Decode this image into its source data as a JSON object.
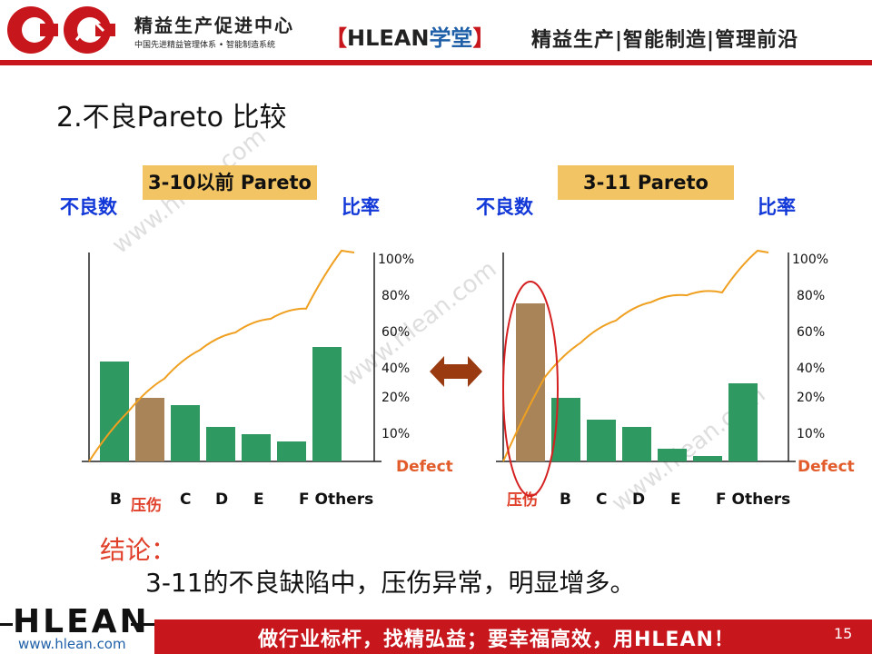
{
  "header": {
    "brand_name": "精益生产促进中心",
    "brand_sub": "中国先进精益管理体系 • 智能制造系统",
    "academy_open": "【",
    "academy_brand": "HLEAN",
    "academy_suffix": "学堂",
    "academy_close": "】",
    "tagline": "精益生产|智能制造|管理前沿"
  },
  "slide": {
    "title": "2.不良Pareto 比较"
  },
  "left_chart_labels": {
    "heading": "3-10以前 Pareto",
    "y_left": "不良数",
    "y_right": "比率",
    "defect": "Defect",
    "pct_ticks": [
      "100%",
      "80%",
      "60%",
      "40%",
      "20%",
      "10%"
    ],
    "x_labels": [
      "B",
      "压伤",
      "C",
      "D",
      "E",
      "F Others"
    ]
  },
  "right_chart_labels": {
    "heading": "3-11 Pareto",
    "y_left": "不良数",
    "y_right": "比率",
    "defect": "Defect",
    "pct_ticks": [
      "100%",
      "80%",
      "60%",
      "40%",
      "20%",
      "10%"
    ],
    "x_labels": [
      "压伤",
      "B",
      "C",
      "D",
      "E",
      "F Others"
    ]
  },
  "chart_data": [
    {
      "type": "bar",
      "title": "3-10以前 Pareto",
      "categories": [
        "B",
        "压伤",
        "C",
        "D",
        "E",
        "F",
        "Others"
      ],
      "values": [
        55,
        35,
        31,
        19,
        15,
        11,
        63
      ],
      "cumulative_line": true,
      "highlight": "压伤",
      "colors": {
        "bar": "#2e9960",
        "highlight": "#a88458",
        "line": "#f0a020"
      }
    },
    {
      "type": "bar",
      "title": "3-11 Pareto",
      "categories": [
        "压伤",
        "B",
        "C",
        "D",
        "E",
        "F",
        "Others"
      ],
      "values": [
        87,
        35,
        23,
        19,
        7,
        3,
        43
      ],
      "cumulative_line": true,
      "highlight": "压伤",
      "colors": {
        "bar": "#2e9960",
        "highlight": "#a88458",
        "line": "#f0a020"
      }
    }
  ],
  "conclusion": {
    "label": "结论：",
    "text": "3-11的不良缺陷中，压伤异常，明显增多。"
  },
  "footer": {
    "logo": "HLEAN",
    "url": "www.hlean.com",
    "slogan": "做行业标杆，找精弘益；要幸福高效，用HLEAN！",
    "page": "15"
  },
  "watermark": "www.hlean.com",
  "colors": {
    "brand_red": "#c8161d",
    "label_blue": "#1238d8",
    "accent_orange": "#e25b2b",
    "arrow": "#9a3a10"
  }
}
